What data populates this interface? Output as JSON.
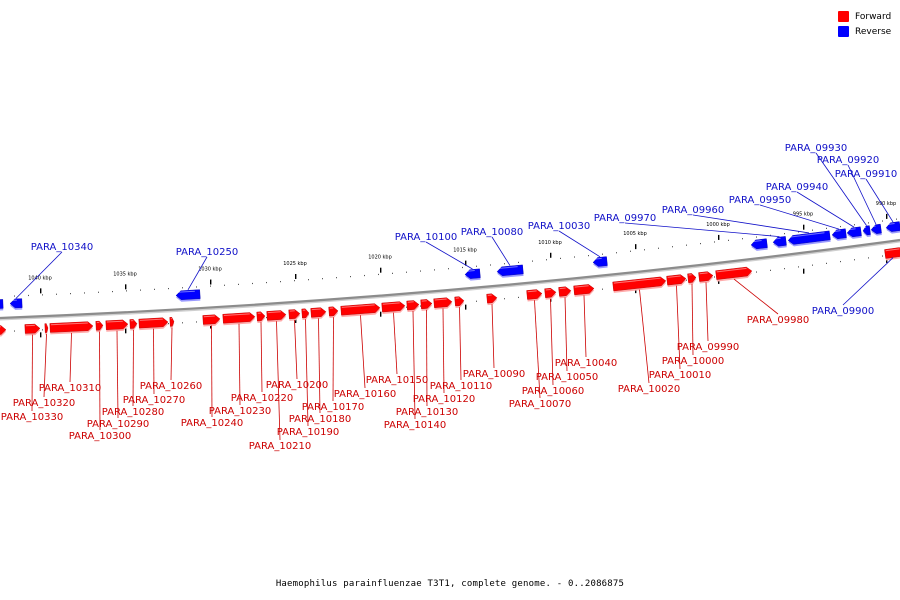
{
  "caption": "Haemophilus parainfluenzae T3T1, complete genome. - 0..2086875",
  "legend": [
    {
      "label": "Forward",
      "color": "#ff0000"
    },
    {
      "label": "Reverse",
      "color": "#0000ff"
    }
  ],
  "colors": {
    "forward": "#ff0000",
    "reverse": "#0000ff",
    "forward_label": "#cc0000",
    "reverse_label": "#1010c8",
    "backbone": "#8c8c8c"
  },
  "scale_ticks": [
    "1040 kbp",
    "1035 kbp",
    "1030 kbp",
    "1025 kbp",
    "1020 kbp",
    "1015 kbp",
    "1010 kbp",
    "1005 kbp",
    "1000 kbp",
    "995 kbp",
    "990 kbp"
  ],
  "reverse_genes": [
    "PARA_10340",
    "PARA_10250",
    "PARA_10100",
    "PARA_10080",
    "PARA_10030",
    "PARA_09970",
    "PARA_09960",
    "PARA_09950",
    "PARA_09940",
    "PARA_09930",
    "PARA_09920",
    "PARA_09910",
    "PARA_09900"
  ],
  "forward_genes": [
    "PARA_10330",
    "PARA_10320",
    "PARA_10310",
    "PARA_10300",
    "PARA_10290",
    "PARA_10280",
    "PARA_10270",
    "PARA_10260",
    "PARA_10240",
    "PARA_10230",
    "PARA_10220",
    "PARA_10210",
    "PARA_10200",
    "PARA_10190",
    "PARA_10180",
    "PARA_10170",
    "PARA_10160",
    "PARA_10150",
    "PARA_10140",
    "PARA_10130",
    "PARA_10120",
    "PARA_10110",
    "PARA_10090",
    "PARA_10070",
    "PARA_10060",
    "PARA_10050",
    "PARA_10040",
    "PARA_10020",
    "PARA_10010",
    "PARA_10000",
    "PARA_09990",
    "PARA_09980"
  ]
}
